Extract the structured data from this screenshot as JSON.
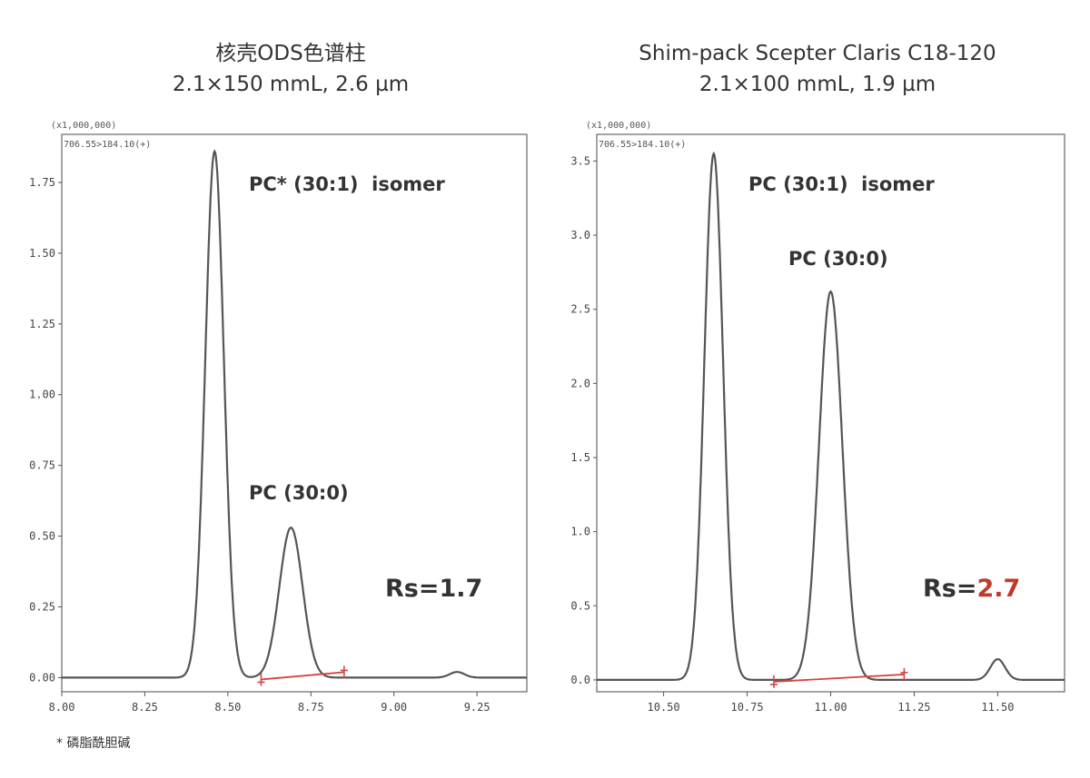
{
  "footnote": "* 磷脂酰胆碱",
  "chart_data": [
    {
      "type": "line",
      "title": "核壳ODS色谱柱",
      "subtitle": "2.1×150 mmL, 2.6 µm",
      "scale_label": "(x1,000,000)",
      "mrm_label": "706.55>184.10(+)",
      "xlim": [
        8.0,
        9.4
      ],
      "ylim": [
        -0.05,
        1.92
      ],
      "xticks": [
        "8.00",
        "8.25",
        "8.50",
        "8.75",
        "9.00",
        "9.25"
      ],
      "yticks": [
        "0.00",
        "0.25",
        "0.50",
        "0.75",
        "1.00",
        "1.25",
        "1.50",
        "1.75"
      ],
      "peaks": [
        {
          "label": "PC* (30:1)  isomer",
          "rt": 8.46,
          "height": 1.86
        },
        {
          "label": "PC (30:0)",
          "rt": 8.69,
          "height": 0.53
        },
        {
          "label": "",
          "rt": 9.19,
          "height": 0.02
        }
      ],
      "resolution": {
        "prefix": "Rs=",
        "value": "1.7",
        "color": "#333333"
      },
      "integration_baseline": [
        8.6,
        8.85
      ]
    },
    {
      "type": "line",
      "title": "Shim-pack Scepter Claris C18-120",
      "subtitle": "2.1×100 mmL, 1.9 µm",
      "scale_label": "(x1,000,000)",
      "mrm_label": "706.55>184.10(+)",
      "xlim": [
        10.3,
        11.7
      ],
      "ylim": [
        -0.08,
        3.68
      ],
      "xticks": [
        "10.50",
        "10.75",
        "11.00",
        "11.25",
        "11.50"
      ],
      "yticks": [
        "0.0",
        "0.5",
        "1.0",
        "1.5",
        "2.0",
        "2.5",
        "3.0",
        "3.5"
      ],
      "peaks": [
        {
          "label": "PC (30:1)  isomer",
          "rt": 10.65,
          "height": 3.55
        },
        {
          "label": "PC (30:0)",
          "rt": 11.0,
          "height": 2.62
        },
        {
          "label": "",
          "rt": 11.5,
          "height": 0.14
        }
      ],
      "resolution": {
        "prefix": "Rs=",
        "value": "2.7",
        "color": "#c0392b"
      },
      "integration_baseline": [
        10.83,
        11.22
      ]
    }
  ]
}
